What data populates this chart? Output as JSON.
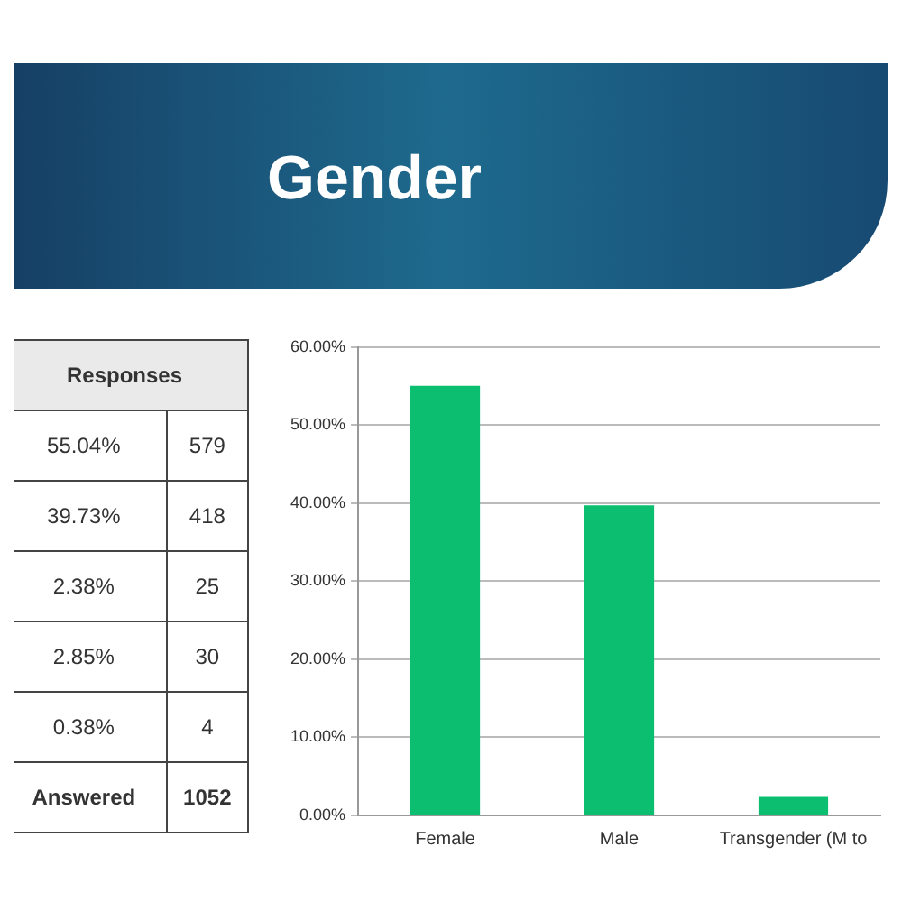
{
  "chart_data": {
    "type": "bar",
    "title": "Gender",
    "categories": [
      "Female",
      "Male",
      "Transgender (M to"
    ],
    "values": [
      55.04,
      39.73,
      2.38
    ],
    "color": "#0cbf70",
    "ylim": [
      0,
      60
    ],
    "yticks": [
      {
        "value": 0,
        "label": "0.00%"
      },
      {
        "value": 10,
        "label": "10.00%"
      },
      {
        "value": 20,
        "label": "20.00%"
      },
      {
        "value": 30,
        "label": "30.00%"
      },
      {
        "value": 40,
        "label": "40.00%"
      },
      {
        "value": 50,
        "label": "50.00%"
      },
      {
        "value": 60,
        "label": "60.00%"
      }
    ],
    "grid": "y",
    "legend": false,
    "annotations": [
      "Responses",
      "55.04%",
      "579",
      "39.73%",
      "418",
      "2.38%",
      "25",
      "2.85%",
      "30",
      "0.38%",
      "4",
      "Answered",
      "1052"
    ]
  }
}
